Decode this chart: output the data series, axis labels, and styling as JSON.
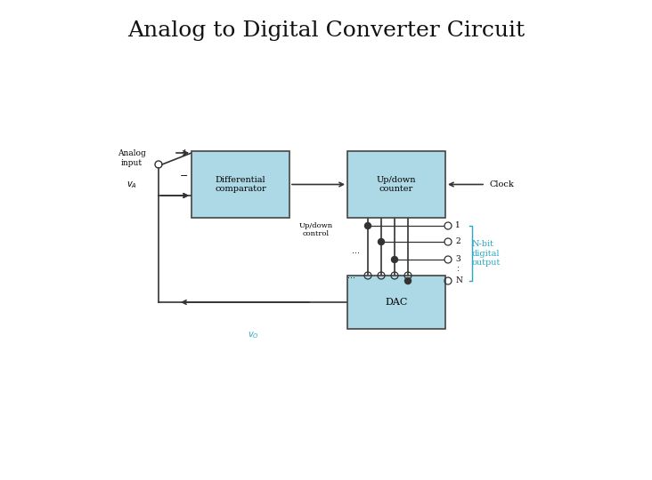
{
  "title": "Analog to Digital Converter Circuit",
  "title_fontsize": 18,
  "title_font": "serif",
  "bg_color": "#ffffff",
  "box_color": "#add8e6",
  "box_edge_color": "#444444",
  "line_color": "#333333",
  "cyan_color": "#29a8c0",
  "text_color": "#111111",
  "comp_label": "Differential\ncomparator",
  "counter_label": "Up/down\ncounter",
  "dac_label": "DAC",
  "clock_label": "Clock",
  "updown_label": "Up/down\ncontrol",
  "nbit_label": "N-bit\ndigital\noutput",
  "output_labels": [
    "1",
    "2",
    "3",
    "N"
  ],
  "analog_label": "Analog\ninput",
  "va_label": "$v_A$",
  "vo_label": "$v_O$"
}
